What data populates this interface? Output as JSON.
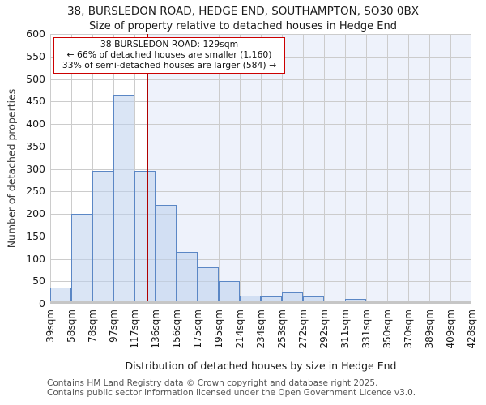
{
  "header": {
    "title": "38, BURSLEDON ROAD, HEDGE END, SOUTHAMPTON, SO30 0BX",
    "subtitle": "Size of property relative to detached houses in Hedge End"
  },
  "annotation": {
    "line1": "38 BURSLEDON ROAD: 129sqm",
    "line2": "← 66% of detached houses are smaller (1,160)",
    "line3": "33% of semi-detached houses are larger (584) →"
  },
  "chart_data": {
    "type": "bar",
    "title": "38, BURSLEDON ROAD, HEDGE END, SOUTHAMPTON, SO30 0BX",
    "subtitle": "Size of property relative to detached houses in Hedge End",
    "xlabel": "Distribution of detached houses by size in Hedge End",
    "ylabel": "Number of detached properties",
    "ylim": [
      0,
      600
    ],
    "ytick_step": 50,
    "grid": true,
    "legend": false,
    "x_tick_labels": [
      "39sqm",
      "58sqm",
      "78sqm",
      "97sqm",
      "117sqm",
      "136sqm",
      "156sqm",
      "175sqm",
      "195sqm",
      "214sqm",
      "234sqm",
      "253sqm",
      "272sqm",
      "292sqm",
      "311sqm",
      "331sqm",
      "350sqm",
      "370sqm",
      "389sqm",
      "409sqm",
      "428sqm"
    ],
    "bin_edges_sqm": [
      39,
      58,
      78,
      97,
      117,
      136,
      156,
      175,
      195,
      214,
      234,
      253,
      272,
      292,
      311,
      331,
      350,
      370,
      389,
      409,
      428
    ],
    "values": [
      30,
      195,
      290,
      460,
      290,
      215,
      110,
      75,
      45,
      13,
      11,
      20,
      10,
      2,
      5,
      0,
      0,
      0,
      0,
      2
    ],
    "marker_sqm": 129,
    "colors": {
      "bar_fill": "#dce6f4",
      "bar_fill_rgba": "rgba(187,208,236,0.55)",
      "bar_edge": "#5b87c5",
      "marker_line": "#b00000",
      "annotation_border": "#cc0000",
      "grid": "#cccccc",
      "shade_right_of_marker": "#eef2fb",
      "axis_line": "#c6c6c6"
    }
  },
  "footer": {
    "line1": "Contains HM Land Registry data © Crown copyright and database right 2025.",
    "line2": "Contains public sector information licensed under the Open Government Licence v3.0."
  }
}
